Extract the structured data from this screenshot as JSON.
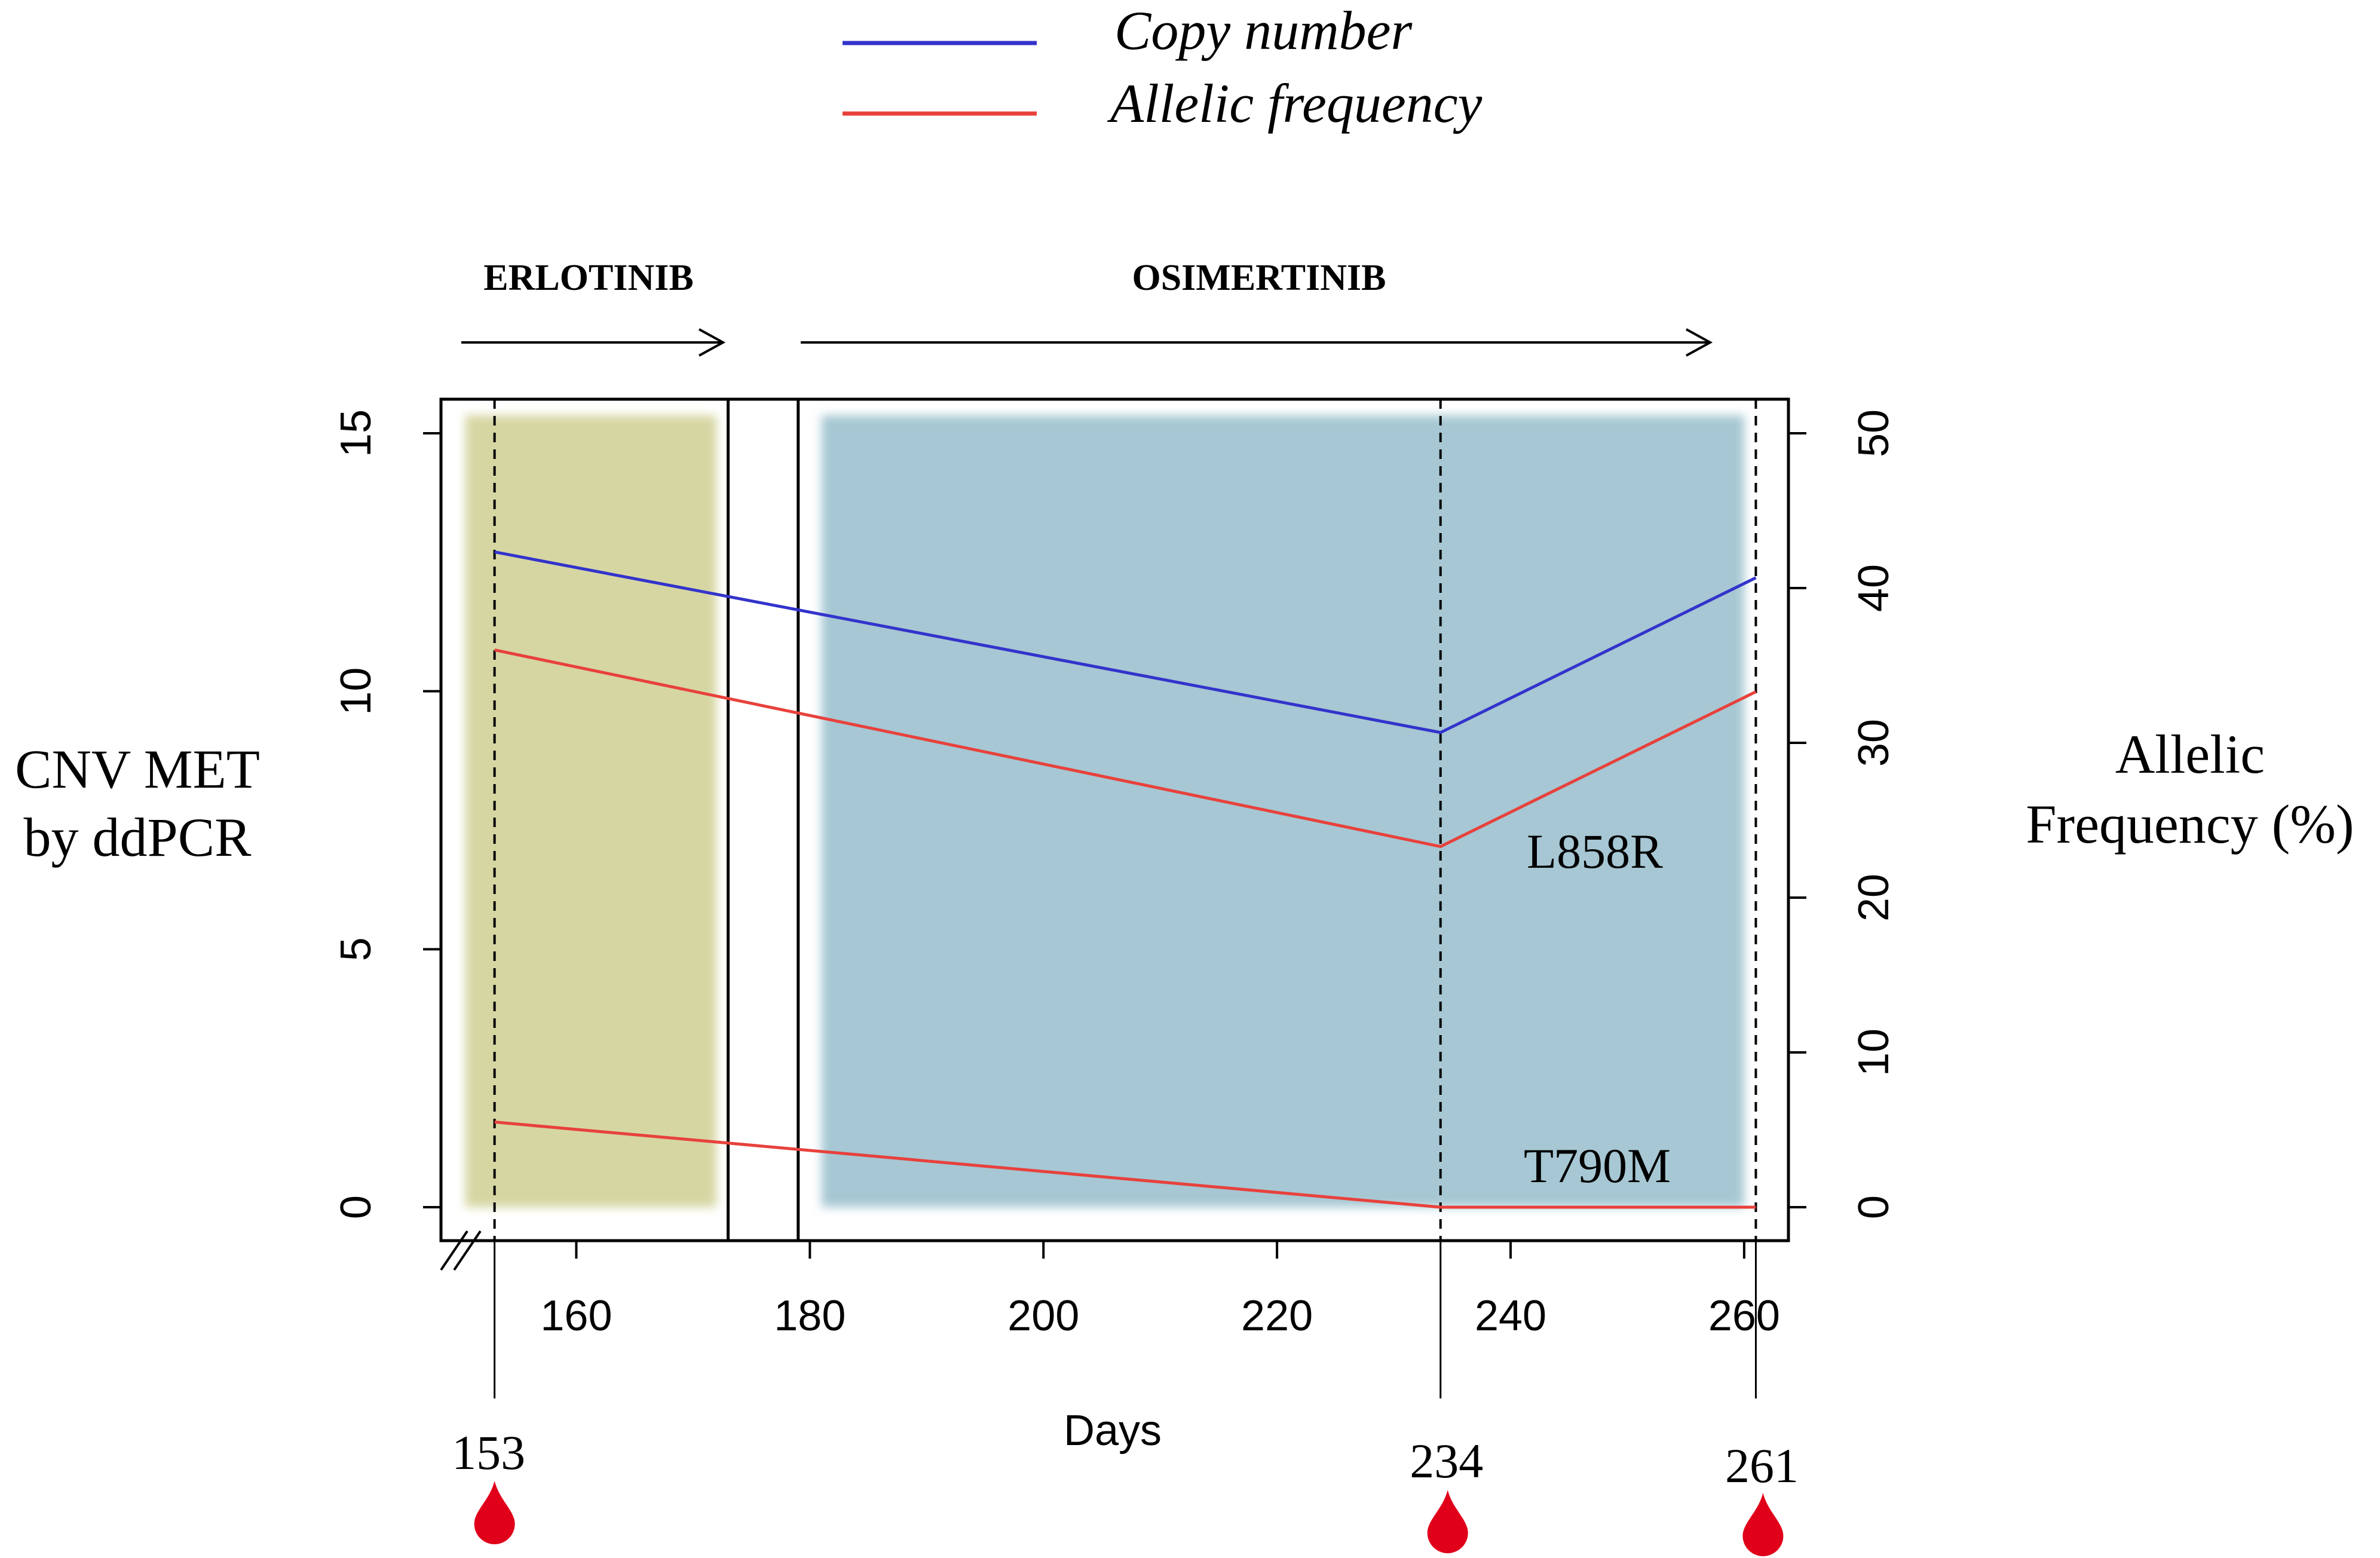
{
  "colors": {
    "copy_number": "#3333cc",
    "allelic_frequency": "#e8413c",
    "erlotinib_band": "#d6d6a3",
    "osimertinib_band": "#a6c7d3",
    "drop": "#e0001a"
  },
  "legend": {
    "copy_number_label": "Copy number",
    "allelic_frequency_label": "Allelic frequency"
  },
  "treatments": {
    "erlotinib": "ERLOTINIB",
    "osimertinib": "OSIMERTINIB"
  },
  "axes": {
    "left_label_line1": "CNV MET",
    "left_label_line2": "by ddPCR",
    "right_label_line1": "Allelic",
    "right_label_line2": "Frequency (%)",
    "x_label": "Days"
  },
  "annotations": {
    "l858r": "L858R",
    "t790m": "T790M"
  },
  "sample_days": [
    "153",
    "234",
    "261"
  ],
  "chart_data": {
    "type": "line",
    "title": "",
    "xlabel": "Days",
    "ylabel": "CNV MET by ddPCR",
    "y2label": "Allelic Frequency (%)",
    "xlim": [
      150,
      262
    ],
    "ylim": [
      0,
      15
    ],
    "y2lim": [
      0,
      50
    ],
    "x_ticks": [
      160,
      180,
      200,
      220,
      240,
      260
    ],
    "y_ticks": [
      0,
      5,
      10,
      15
    ],
    "y2_ticks": [
      0,
      10,
      20,
      30,
      40,
      50
    ],
    "x_tick_labels": [
      "160",
      "180",
      "200",
      "220",
      "240",
      "260"
    ],
    "y_tick_labels": [
      "0",
      "5",
      "10",
      "15"
    ],
    "y2_tick_labels": [
      "0",
      "10",
      "20",
      "30",
      "40",
      "50"
    ],
    "sample_days": [
      153,
      234,
      261
    ],
    "treatment_periods": [
      {
        "name": "ERLOTINIB",
        "start": 150.5,
        "end": 172
      },
      {
        "name": "OSIMERTINIB",
        "start": 181,
        "end": 260
      }
    ],
    "treatment_switch_lines": [
      173,
      179
    ],
    "series": [
      {
        "name": "Copy number",
        "axis": "left",
        "x": [
          153,
          234,
          261
        ],
        "values": [
          12.7,
          9.2,
          12.2
        ]
      },
      {
        "name": "Allelic frequency L858R",
        "axis": "right",
        "x": [
          153,
          234,
          261
        ],
        "values": [
          36,
          23.3,
          33.3
        ]
      },
      {
        "name": "Allelic frequency T790M",
        "axis": "right",
        "x": [
          153,
          234,
          261
        ],
        "values": [
          5.5,
          0,
          0
        ]
      }
    ],
    "legend": [
      "Copy number",
      "Allelic frequency"
    ]
  }
}
